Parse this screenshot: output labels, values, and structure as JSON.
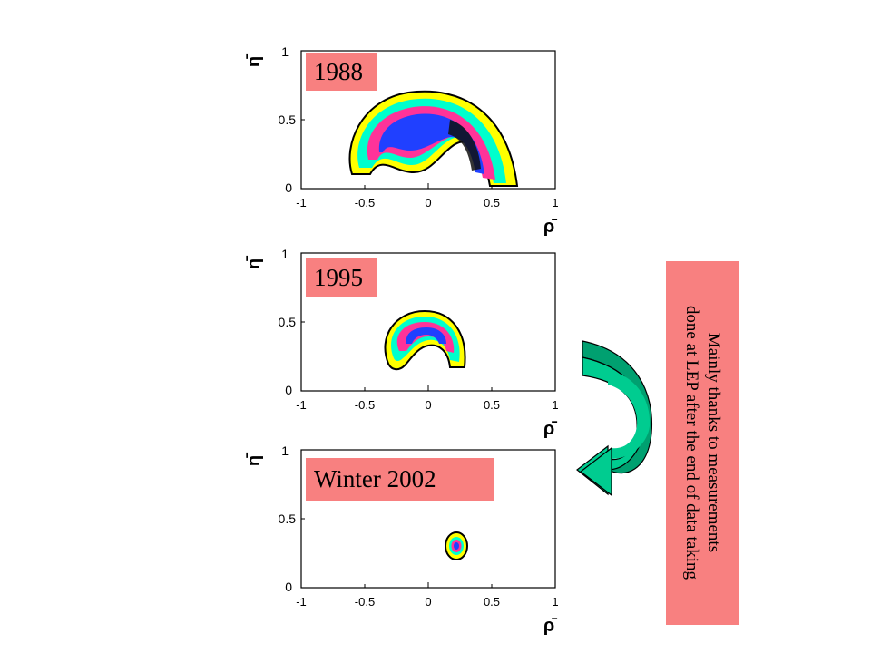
{
  "panels": [
    {
      "year_label": "1988",
      "y_axis_label": "η̄",
      "x_axis_label": "ρ̄",
      "y_ticks": [
        "1",
        "0.5",
        "0"
      ],
      "x_ticks": [
        "-1",
        "-0.5",
        "0",
        "0.5",
        "1"
      ]
    },
    {
      "year_label": "1995",
      "y_axis_label": "η̄",
      "x_axis_label": "ρ̄",
      "y_ticks": [
        "1",
        "0.5",
        "0"
      ],
      "x_ticks": [
        "-1",
        "-0.5",
        "0",
        "0.5",
        "1"
      ]
    },
    {
      "year_label": "Winter 2002",
      "y_axis_label": "η̄",
      "x_axis_label": "ρ̄",
      "y_ticks": [
        "1",
        "0.5",
        "0"
      ],
      "x_ticks": [
        "-1",
        "-0.5",
        "0",
        "0.5",
        "1"
      ]
    }
  ],
  "annotation": {
    "text": "Mainly thanks to measurements\ndone at LEP after the end of data taking"
  },
  "colors": {
    "label_background": "#f88080",
    "arrow_outer": "#00a070",
    "arrow_inner": "#00cc90",
    "contour_yellow": "#ffff00",
    "contour_cyan": "#00ffcc",
    "contour_magenta": "#ff3399",
    "contour_blue": "#2040ff",
    "contour_black": "#111111"
  }
}
